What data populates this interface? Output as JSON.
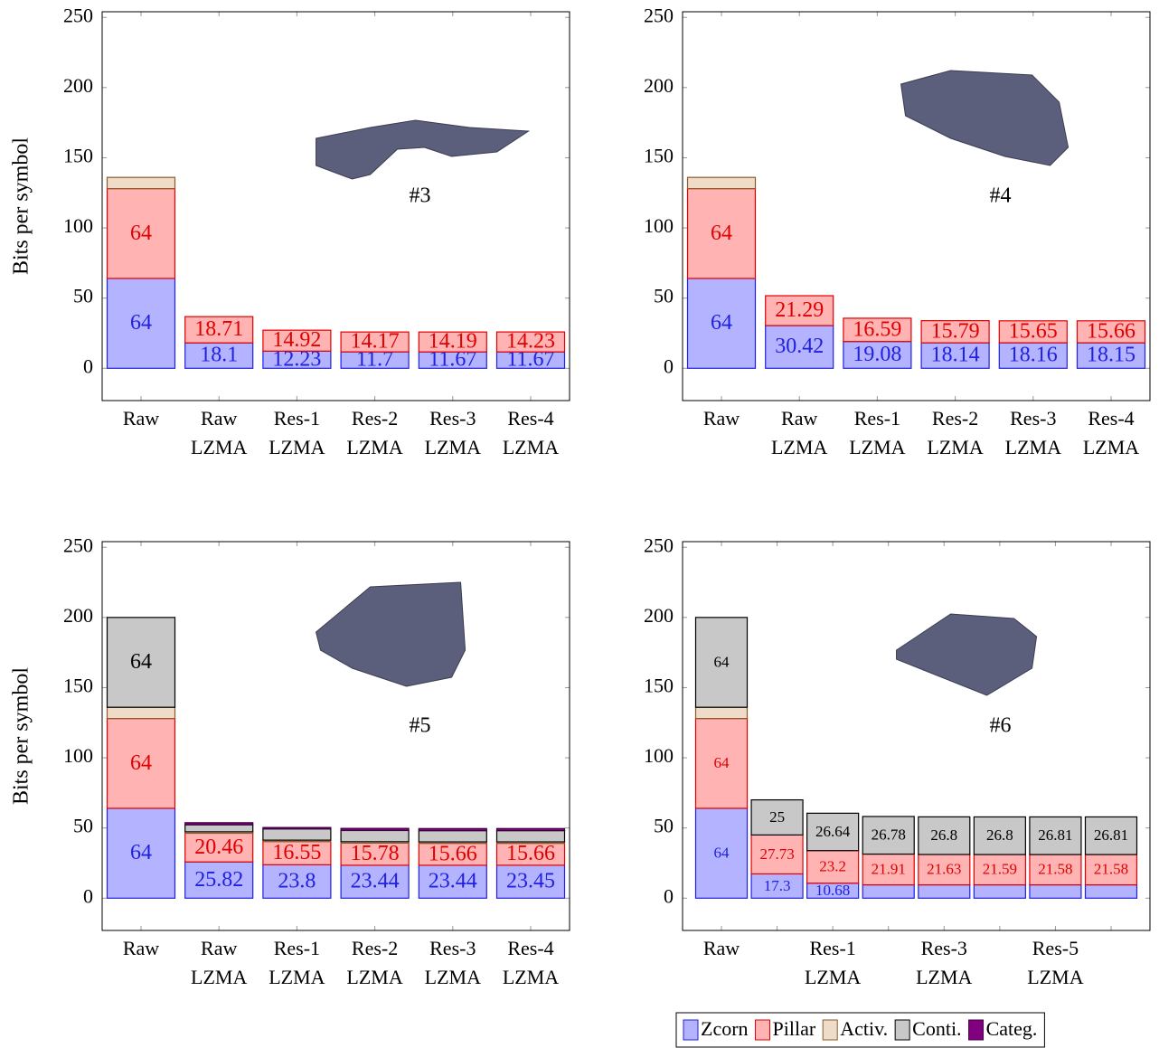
{
  "chart_data": [
    {
      "type": "bar",
      "stacked": true,
      "annotation": "#3",
      "ylabel": "Bits per symbol",
      "categories": [
        [
          "Raw"
        ],
        [
          "Raw",
          "LZMA"
        ],
        [
          "Res-1",
          "LZMA"
        ],
        [
          "Res-2",
          "LZMA"
        ],
        [
          "Res-3",
          "LZMA"
        ],
        [
          "Res-4",
          "LZMA"
        ]
      ],
      "ylim": [
        -23,
        254
      ],
      "yticks": [
        0,
        50,
        100,
        150,
        200,
        250
      ],
      "series": [
        {
          "name": "Zcorn",
          "color": "#b3b3ff",
          "edge": "#2020e0",
          "label_color": "#2020e0",
          "values": [
            64,
            18.1,
            12.23,
            11.7,
            11.67,
            11.67
          ]
        },
        {
          "name": "Pillar",
          "color": "#ffb3b3",
          "edge": "#e00000",
          "label_color": "#e00000",
          "values": [
            64,
            18.71,
            14.92,
            14.17,
            14.19,
            14.23
          ]
        },
        {
          "name": "Activ.",
          "color": "#efdcc8",
          "edge": "#8b5a2b",
          "show_labels": false,
          "values": [
            8,
            null,
            null,
            null,
            null,
            null
          ]
        },
        {
          "name": "Conti.",
          "color": "#c8c8c8",
          "edge": "#000000",
          "label_color": "#000000",
          "values": [
            null,
            null,
            null,
            null,
            null,
            null
          ]
        },
        {
          "name": "Categ.",
          "color": "#800080",
          "edge": "#400040",
          "show_labels": false,
          "values": [
            null,
            null,
            null,
            null,
            null,
            null
          ]
        }
      ]
    },
    {
      "type": "bar",
      "stacked": true,
      "annotation": "#4",
      "categories": [
        [
          "Raw"
        ],
        [
          "Raw",
          "LZMA"
        ],
        [
          "Res-1",
          "LZMA"
        ],
        [
          "Res-2",
          "LZMA"
        ],
        [
          "Res-3",
          "LZMA"
        ],
        [
          "Res-4",
          "LZMA"
        ]
      ],
      "ylim": [
        -23,
        254
      ],
      "yticks": [
        0,
        50,
        100,
        150,
        200,
        250
      ],
      "series": [
        {
          "name": "Zcorn",
          "color": "#b3b3ff",
          "edge": "#2020e0",
          "label_color": "#2020e0",
          "values": [
            64,
            30.42,
            19.08,
            18.14,
            18.16,
            18.15
          ]
        },
        {
          "name": "Pillar",
          "color": "#ffb3b3",
          "edge": "#e00000",
          "label_color": "#e00000",
          "values": [
            64,
            21.29,
            16.59,
            15.79,
            15.65,
            15.66
          ]
        },
        {
          "name": "Activ.",
          "color": "#efdcc8",
          "edge": "#8b5a2b",
          "show_labels": false,
          "values": [
            8,
            null,
            null,
            null,
            null,
            null
          ]
        },
        {
          "name": "Conti.",
          "color": "#c8c8c8",
          "edge": "#000000",
          "label_color": "#000000",
          "values": [
            null,
            null,
            null,
            null,
            null,
            null
          ]
        },
        {
          "name": "Categ.",
          "color": "#800080",
          "edge": "#400040",
          "show_labels": false,
          "values": [
            null,
            null,
            null,
            null,
            null,
            null
          ]
        }
      ]
    },
    {
      "type": "bar",
      "stacked": true,
      "annotation": "#5",
      "ylabel": "Bits per symbol",
      "categories": [
        [
          "Raw"
        ],
        [
          "Raw",
          "LZMA"
        ],
        [
          "Res-1",
          "LZMA"
        ],
        [
          "Res-2",
          "LZMA"
        ],
        [
          "Res-3",
          "LZMA"
        ],
        [
          "Res-4",
          "LZMA"
        ]
      ],
      "ylim": [
        -23,
        254
      ],
      "yticks": [
        0,
        50,
        100,
        150,
        200,
        250
      ],
      "series": [
        {
          "name": "Zcorn",
          "color": "#b3b3ff",
          "edge": "#2020e0",
          "label_color": "#2020e0",
          "values": [
            64,
            25.82,
            23.8,
            23.44,
            23.44,
            23.45
          ]
        },
        {
          "name": "Pillar",
          "color": "#ffb3b3",
          "edge": "#e00000",
          "label_color": "#e00000",
          "values": [
            64,
            20.46,
            16.55,
            15.78,
            15.66,
            15.66
          ]
        },
        {
          "name": "Activ.",
          "color": "#efdcc8",
          "edge": "#8b5a2b",
          "show_labels": false,
          "values": [
            8,
            1,
            1,
            1,
            1,
            1
          ]
        },
        {
          "name": "Conti.",
          "color": "#c8c8c8",
          "edge": "#000000",
          "label_color": "#000000",
          "value_labels": [
            "64",
            null,
            null,
            null,
            null,
            null
          ],
          "values": [
            64,
            5,
            8,
            8,
            8,
            8
          ]
        },
        {
          "name": "Categ.",
          "color": "#800080",
          "edge": "#400040",
          "show_labels": false,
          "values": [
            null,
            1.5,
            1,
            1.5,
            1.5,
            1.5
          ]
        }
      ]
    },
    {
      "type": "bar",
      "stacked": true,
      "annotation": "#6",
      "legend": "below",
      "categories": [
        [
          "Raw"
        ],
        null,
        [
          "Res-1",
          "LZMA"
        ],
        null,
        [
          "Res-3",
          "LZMA"
        ],
        null,
        [
          "Res-5",
          "LZMA"
        ],
        null
      ],
      "ylim": [
        -23,
        254
      ],
      "yticks": [
        0,
        50,
        100,
        150,
        200,
        250
      ],
      "series": [
        {
          "name": "Zcorn",
          "color": "#b3b3ff",
          "edge": "#2020e0",
          "label_color": "#2020e0",
          "value_labels": [
            "64",
            "17.3",
            "10.68",
            null,
            null,
            null,
            null,
            null
          ],
          "values": [
            64,
            17.3,
            10.68,
            9.5,
            9.5,
            9.5,
            9.5,
            9.5
          ]
        },
        {
          "name": "Pillar",
          "color": "#ffb3b3",
          "edge": "#e00000",
          "label_color": "#e00000",
          "values": [
            64,
            27.73,
            23.2,
            21.91,
            21.63,
            21.59,
            21.58,
            21.58
          ]
        },
        {
          "name": "Activ.",
          "color": "#efdcc8",
          "edge": "#8b5a2b",
          "show_labels": false,
          "values": [
            8,
            null,
            null,
            null,
            null,
            null,
            null,
            null
          ]
        },
        {
          "name": "Conti.",
          "color": "#c8c8c8",
          "edge": "#000000",
          "label_color": "#000000",
          "values": [
            64,
            25,
            26.64,
            26.78,
            26.8,
            26.8,
            26.81,
            26.81
          ]
        },
        {
          "name": "Categ.",
          "color": "#800080",
          "edge": "#400040",
          "show_labels": false,
          "values": [
            null,
            null,
            null,
            null,
            null,
            null,
            null,
            null
          ]
        }
      ]
    }
  ]
}
